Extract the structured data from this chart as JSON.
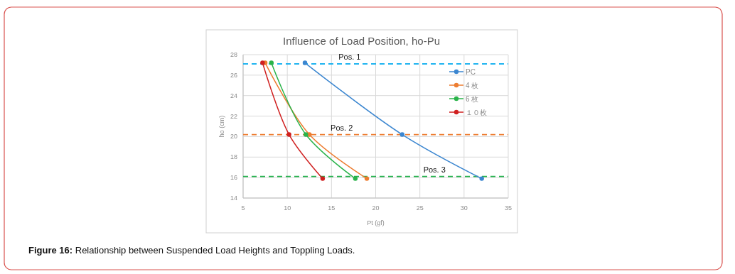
{
  "chart_data": {
    "type": "line",
    "title": "Influence of Load Position, ho-Pu",
    "xlabel": "Pt (gf)",
    "ylabel": "ho (cm)",
    "xlim": [
      5,
      35
    ],
    "xticks": [
      5,
      10,
      15,
      20,
      25,
      30,
      35
    ],
    "ylim": [
      14,
      28
    ],
    "yticks": [
      14,
      16,
      18,
      20,
      22,
      24,
      26,
      28
    ],
    "grid": true,
    "legend": "right",
    "marker": "circle",
    "line_style": "solid",
    "series": [
      {
        "name": "PC",
        "color": "#3b86d0",
        "x": [
          12,
          23,
          32
        ],
        "values": [
          27.2,
          20.2,
          15.9
        ]
      },
      {
        "name": "4 枚",
        "color": "#ed7d31",
        "x": [
          7.5,
          12.5,
          19
        ],
        "values": [
          27.2,
          20.2,
          15.9
        ]
      },
      {
        "name": "6 枚",
        "color": "#2ab34a",
        "x": [
          8.2,
          12.1,
          17.7
        ],
        "values": [
          27.2,
          20.2,
          15.9
        ]
      },
      {
        "name": "１０枚",
        "color": "#d02020",
        "x": [
          7.2,
          10.2,
          14
        ],
        "values": [
          27.2,
          20.2,
          15.9
        ]
      }
    ],
    "ref_lines": [
      {
        "axis": "y",
        "value": 27.1,
        "label": "Pos. 1",
        "color": "#1fb4f0",
        "line_style": "dashed"
      },
      {
        "axis": "y",
        "value": 20.2,
        "label": "Pos. 2",
        "color": "#ed7d31",
        "line_style": "dashed"
      },
      {
        "axis": "y",
        "value": 16.1,
        "label": "Pos. 3",
        "color": "#22b04b",
        "line_style": "dashed"
      }
    ],
    "annotations": [
      "Figure 16: Relationship between Suspended Load Heights and Toppling Loads."
    ]
  }
}
